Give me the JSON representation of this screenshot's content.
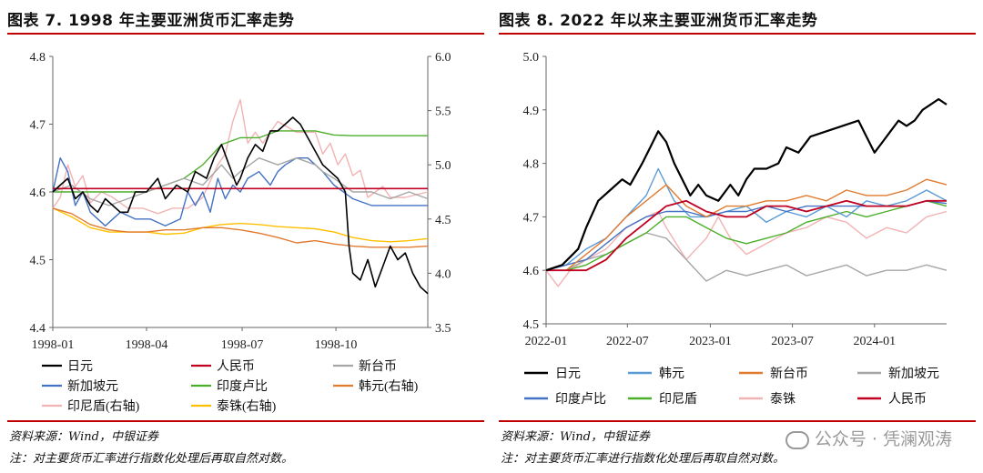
{
  "watermark": "公众号 · 凭澜观涛",
  "charts": [
    {
      "title": "图表 7. 1998 年主要亚洲货币汇率走势",
      "source": "资料来源：Wind，中银证券",
      "note": "注：对主要货币汇率进行指数化处理后再取自然对数。"
    },
    {
      "title": "图表 8. 2022 年以来主要亚洲货币汇率走势",
      "source": "资料来源：Wind，中银证券",
      "note": "注：对主要货币汇率进行指数化处理后再取自然对数。"
    }
  ],
  "chart_data": [
    {
      "type": "line",
      "title": "图表 7. 1998 年主要亚洲货币汇率走势",
      "x_ticks": [
        "1998-01",
        "1998-04",
        "1998-07",
        "1998-10"
      ],
      "x_range": [
        0,
        1
      ],
      "x_tick_pos": [
        0,
        0.25,
        0.505,
        0.755
      ],
      "ylim_left": [
        4.4,
        4.8
      ],
      "yticks_left": [
        4.4,
        4.5,
        4.6,
        4.7,
        4.8
      ],
      "ylim_right": [
        3.5,
        6.0
      ],
      "yticks_right": [
        3.5,
        4.0,
        4.5,
        5.0,
        5.5,
        6.0
      ],
      "series": [
        {
          "name": "日元",
          "axis": "left",
          "color": "#000000",
          "width": 1.6,
          "x": [
            0,
            0.02,
            0.04,
            0.06,
            0.08,
            0.1,
            0.12,
            0.14,
            0.16,
            0.18,
            0.2,
            0.22,
            0.25,
            0.28,
            0.3,
            0.33,
            0.36,
            0.38,
            0.41,
            0.43,
            0.45,
            0.47,
            0.49,
            0.5,
            0.52,
            0.54,
            0.56,
            0.58,
            0.6,
            0.62,
            0.64,
            0.66,
            0.68,
            0.7,
            0.72,
            0.74,
            0.76,
            0.78,
            0.79,
            0.8,
            0.82,
            0.84,
            0.86,
            0.88,
            0.9,
            0.92,
            0.94,
            0.96,
            0.98,
            1.0
          ],
          "y": [
            4.6,
            4.61,
            4.62,
            4.59,
            4.6,
            4.58,
            4.57,
            4.59,
            4.58,
            4.57,
            4.57,
            4.6,
            4.6,
            4.62,
            4.59,
            4.61,
            4.6,
            4.63,
            4.62,
            4.65,
            4.67,
            4.64,
            4.61,
            4.62,
            4.65,
            4.67,
            4.66,
            4.69,
            4.69,
            4.7,
            4.71,
            4.7,
            4.68,
            4.66,
            4.64,
            4.63,
            4.62,
            4.6,
            4.52,
            4.48,
            4.47,
            4.5,
            4.46,
            4.49,
            4.52,
            4.5,
            4.51,
            4.48,
            4.46,
            4.45
          ]
        },
        {
          "name": "人民币",
          "axis": "left",
          "color": "#c00020",
          "width": 1.6,
          "x": [
            0,
            1.0
          ],
          "y": [
            4.605,
            4.605
          ]
        },
        {
          "name": "新台币",
          "axis": "left",
          "color": "#a6a6a6",
          "width": 1.4,
          "x": [
            0,
            0.05,
            0.1,
            0.15,
            0.2,
            0.25,
            0.3,
            0.35,
            0.4,
            0.45,
            0.48,
            0.5,
            0.55,
            0.6,
            0.65,
            0.7,
            0.72,
            0.75,
            0.8,
            0.85,
            0.9,
            0.95,
            1.0
          ],
          "y": [
            4.6,
            4.61,
            4.59,
            4.58,
            4.59,
            4.6,
            4.61,
            4.62,
            4.61,
            4.64,
            4.62,
            4.63,
            4.65,
            4.64,
            4.65,
            4.64,
            4.63,
            4.62,
            4.6,
            4.6,
            4.59,
            4.6,
            4.59
          ]
        },
        {
          "name": "新加坡元",
          "axis": "left",
          "color": "#4472c4",
          "width": 1.4,
          "x": [
            0,
            0.02,
            0.04,
            0.06,
            0.08,
            0.1,
            0.14,
            0.18,
            0.22,
            0.26,
            0.3,
            0.34,
            0.36,
            0.38,
            0.4,
            0.42,
            0.44,
            0.46,
            0.48,
            0.5,
            0.52,
            0.55,
            0.58,
            0.6,
            0.62,
            0.65,
            0.68,
            0.7,
            0.72,
            0.75,
            0.8,
            0.85,
            0.9,
            0.95,
            1.0
          ],
          "y": [
            4.6,
            4.65,
            4.63,
            4.58,
            4.6,
            4.57,
            4.55,
            4.57,
            4.56,
            4.56,
            4.55,
            4.56,
            4.6,
            4.58,
            4.6,
            4.57,
            4.62,
            4.59,
            4.61,
            4.6,
            4.62,
            4.63,
            4.61,
            4.63,
            4.64,
            4.65,
            4.65,
            4.64,
            4.63,
            4.61,
            4.59,
            4.58,
            4.58,
            4.58,
            4.58
          ]
        },
        {
          "name": "印度卢比",
          "axis": "left",
          "color": "#4caf2a",
          "width": 1.4,
          "x": [
            0,
            0.05,
            0.1,
            0.15,
            0.2,
            0.25,
            0.3,
            0.35,
            0.4,
            0.45,
            0.5,
            0.55,
            0.6,
            0.65,
            0.7,
            0.75,
            0.8,
            0.85,
            0.9,
            0.95,
            1.0
          ],
          "y": [
            4.6,
            4.6,
            4.6,
            4.6,
            4.6,
            4.6,
            4.61,
            4.62,
            4.64,
            4.67,
            4.68,
            4.68,
            4.69,
            4.69,
            4.69,
            4.684,
            4.683,
            4.683,
            4.683,
            4.683,
            4.683
          ]
        },
        {
          "name": "韩元(右轴)",
          "axis": "right",
          "color": "#e07b30",
          "width": 1.4,
          "x": [
            0,
            0.05,
            0.1,
            0.15,
            0.2,
            0.25,
            0.3,
            0.35,
            0.4,
            0.45,
            0.5,
            0.55,
            0.6,
            0.65,
            0.7,
            0.75,
            0.8,
            0.85,
            0.9,
            0.95,
            1.0
          ],
          "y": [
            4.6,
            4.55,
            4.45,
            4.4,
            4.38,
            4.38,
            4.4,
            4.4,
            4.42,
            4.42,
            4.4,
            4.37,
            4.33,
            4.28,
            4.3,
            4.27,
            4.25,
            4.24,
            4.24,
            4.24,
            4.25
          ]
        },
        {
          "name": "印尼盾(右轴)",
          "axis": "right",
          "color": "#f2b3b3",
          "width": 1.4,
          "x": [
            0,
            0.02,
            0.04,
            0.06,
            0.08,
            0.1,
            0.13,
            0.16,
            0.2,
            0.24,
            0.28,
            0.32,
            0.36,
            0.4,
            0.42,
            0.44,
            0.46,
            0.48,
            0.5,
            0.52,
            0.54,
            0.56,
            0.6,
            0.65,
            0.7,
            0.72,
            0.74,
            0.76,
            0.78,
            0.8,
            0.82,
            0.84,
            0.86,
            0.88,
            0.9,
            0.94,
            1.0
          ],
          "y": [
            4.6,
            4.7,
            5.0,
            4.8,
            4.9,
            4.65,
            4.75,
            4.7,
            4.6,
            4.6,
            4.55,
            4.6,
            4.6,
            4.7,
            4.85,
            5.0,
            5.1,
            5.4,
            5.6,
            5.2,
            5.3,
            5.2,
            5.4,
            5.3,
            5.3,
            5.1,
            5.2,
            5.0,
            5.1,
            4.9,
            4.95,
            4.7,
            4.75,
            4.8,
            4.7,
            4.7,
            4.75
          ]
        },
        {
          "name": "泰铢(右轴)",
          "axis": "right",
          "color": "#ffc000",
          "width": 1.4,
          "x": [
            0,
            0.05,
            0.1,
            0.15,
            0.2,
            0.25,
            0.3,
            0.35,
            0.4,
            0.45,
            0.5,
            0.55,
            0.6,
            0.65,
            0.7,
            0.75,
            0.8,
            0.85,
            0.9,
            0.95,
            1.0
          ],
          "y": [
            4.6,
            4.52,
            4.42,
            4.38,
            4.38,
            4.38,
            4.36,
            4.37,
            4.42,
            4.45,
            4.46,
            4.45,
            4.43,
            4.42,
            4.41,
            4.38,
            4.33,
            4.3,
            4.29,
            4.3,
            4.32
          ]
        }
      ]
    },
    {
      "type": "line",
      "title": "图表 8. 2022 年以来主要亚洲货币汇率走势",
      "x_ticks": [
        "2022-01",
        "2022-07",
        "2023-01",
        "2023-07",
        "2024-01"
      ],
      "x_range": [
        0,
        1
      ],
      "x_tick_pos": [
        0,
        0.203,
        0.41,
        0.615,
        0.82
      ],
      "ylim": [
        4.5,
        5.0
      ],
      "yticks": [
        4.5,
        4.6,
        4.7,
        4.8,
        4.9,
        5.0
      ],
      "series": [
        {
          "name": "日元",
          "color": "#000000",
          "width": 2.2,
          "x": [
            0,
            0.04,
            0.08,
            0.1,
            0.13,
            0.16,
            0.19,
            0.21,
            0.24,
            0.26,
            0.28,
            0.3,
            0.32,
            0.34,
            0.36,
            0.38,
            0.4,
            0.43,
            0.46,
            0.48,
            0.5,
            0.52,
            0.55,
            0.58,
            0.6,
            0.63,
            0.66,
            0.7,
            0.74,
            0.78,
            0.8,
            0.82,
            0.84,
            0.86,
            0.88,
            0.9,
            0.92,
            0.94,
            0.96,
            0.98,
            1.0
          ],
          "y": [
            4.6,
            4.61,
            4.64,
            4.68,
            4.73,
            4.75,
            4.77,
            4.76,
            4.8,
            4.83,
            4.86,
            4.84,
            4.8,
            4.77,
            4.74,
            4.76,
            4.74,
            4.73,
            4.76,
            4.74,
            4.77,
            4.79,
            4.79,
            4.8,
            4.83,
            4.82,
            4.85,
            4.86,
            4.87,
            4.88,
            4.85,
            4.82,
            4.84,
            4.86,
            4.88,
            4.87,
            4.88,
            4.9,
            4.91,
            4.92,
            4.91
          ]
        },
        {
          "name": "韩元",
          "color": "#5b9bd5",
          "width": 1.4,
          "x": [
            0,
            0.05,
            0.1,
            0.15,
            0.2,
            0.25,
            0.28,
            0.32,
            0.36,
            0.4,
            0.45,
            0.5,
            0.55,
            0.6,
            0.65,
            0.7,
            0.75,
            0.8,
            0.85,
            0.9,
            0.95,
            1.0
          ],
          "y": [
            4.6,
            4.61,
            4.64,
            4.66,
            4.7,
            4.74,
            4.79,
            4.73,
            4.7,
            4.7,
            4.71,
            4.72,
            4.69,
            4.71,
            4.7,
            4.72,
            4.7,
            4.73,
            4.72,
            4.73,
            4.75,
            4.73
          ]
        },
        {
          "name": "新台币",
          "color": "#e07b30",
          "width": 1.4,
          "x": [
            0,
            0.05,
            0.1,
            0.15,
            0.2,
            0.25,
            0.3,
            0.35,
            0.4,
            0.45,
            0.5,
            0.55,
            0.6,
            0.65,
            0.7,
            0.75,
            0.8,
            0.85,
            0.9,
            0.95,
            1.0
          ],
          "y": [
            4.6,
            4.6,
            4.63,
            4.66,
            4.7,
            4.73,
            4.76,
            4.72,
            4.7,
            4.72,
            4.72,
            4.73,
            4.73,
            4.74,
            4.73,
            4.75,
            4.74,
            4.74,
            4.75,
            4.77,
            4.76
          ]
        },
        {
          "name": "新加坡元",
          "color": "#a6a6a6",
          "width": 1.4,
          "x": [
            0,
            0.05,
            0.1,
            0.15,
            0.2,
            0.25,
            0.3,
            0.35,
            0.4,
            0.45,
            0.5,
            0.55,
            0.6,
            0.65,
            0.7,
            0.75,
            0.8,
            0.85,
            0.9,
            0.95,
            1.0
          ],
          "y": [
            4.6,
            4.6,
            4.62,
            4.63,
            4.65,
            4.67,
            4.66,
            4.62,
            4.58,
            4.6,
            4.59,
            4.6,
            4.61,
            4.59,
            4.6,
            4.61,
            4.59,
            4.6,
            4.6,
            4.61,
            4.6
          ]
        },
        {
          "name": "印度卢比",
          "color": "#4472c4",
          "width": 1.4,
          "x": [
            0,
            0.05,
            0.1,
            0.15,
            0.2,
            0.25,
            0.3,
            0.35,
            0.4,
            0.45,
            0.5,
            0.55,
            0.6,
            0.65,
            0.7,
            0.75,
            0.8,
            0.85,
            0.9,
            0.95,
            1.0
          ],
          "y": [
            4.6,
            4.61,
            4.62,
            4.65,
            4.68,
            4.7,
            4.71,
            4.71,
            4.7,
            4.71,
            4.71,
            4.72,
            4.71,
            4.72,
            4.72,
            4.72,
            4.72,
            4.72,
            4.72,
            4.73,
            4.725
          ]
        },
        {
          "name": "印尼盾",
          "color": "#4caf2a",
          "width": 1.4,
          "x": [
            0,
            0.05,
            0.1,
            0.15,
            0.2,
            0.25,
            0.3,
            0.35,
            0.4,
            0.45,
            0.5,
            0.55,
            0.6,
            0.65,
            0.7,
            0.75,
            0.8,
            0.85,
            0.9,
            0.95,
            1.0
          ],
          "y": [
            4.6,
            4.6,
            4.61,
            4.63,
            4.65,
            4.67,
            4.7,
            4.7,
            4.68,
            4.66,
            4.65,
            4.66,
            4.67,
            4.69,
            4.7,
            4.71,
            4.7,
            4.71,
            4.72,
            4.73,
            4.72
          ]
        },
        {
          "name": "泰铢",
          "color": "#f2b3b3",
          "width": 1.4,
          "x": [
            0,
            0.03,
            0.06,
            0.1,
            0.15,
            0.2,
            0.25,
            0.28,
            0.3,
            0.35,
            0.4,
            0.43,
            0.46,
            0.5,
            0.55,
            0.6,
            0.65,
            0.7,
            0.75,
            0.8,
            0.85,
            0.9,
            0.95,
            1.0
          ],
          "y": [
            4.6,
            4.57,
            4.6,
            4.62,
            4.64,
            4.68,
            4.7,
            4.71,
            4.68,
            4.62,
            4.66,
            4.7,
            4.66,
            4.63,
            4.65,
            4.67,
            4.68,
            4.7,
            4.69,
            4.66,
            4.68,
            4.67,
            4.7,
            4.71
          ]
        },
        {
          "name": "人民币",
          "color": "#c00020",
          "width": 1.8,
          "x": [
            0,
            0.05,
            0.1,
            0.15,
            0.2,
            0.25,
            0.3,
            0.35,
            0.4,
            0.45,
            0.5,
            0.55,
            0.6,
            0.65,
            0.7,
            0.75,
            0.8,
            0.85,
            0.9,
            0.95,
            1.0
          ],
          "y": [
            4.6,
            4.6,
            4.6,
            4.62,
            4.66,
            4.69,
            4.72,
            4.73,
            4.71,
            4.7,
            4.7,
            4.72,
            4.72,
            4.71,
            4.72,
            4.73,
            4.72,
            4.72,
            4.72,
            4.73,
            4.73
          ]
        }
      ]
    }
  ]
}
